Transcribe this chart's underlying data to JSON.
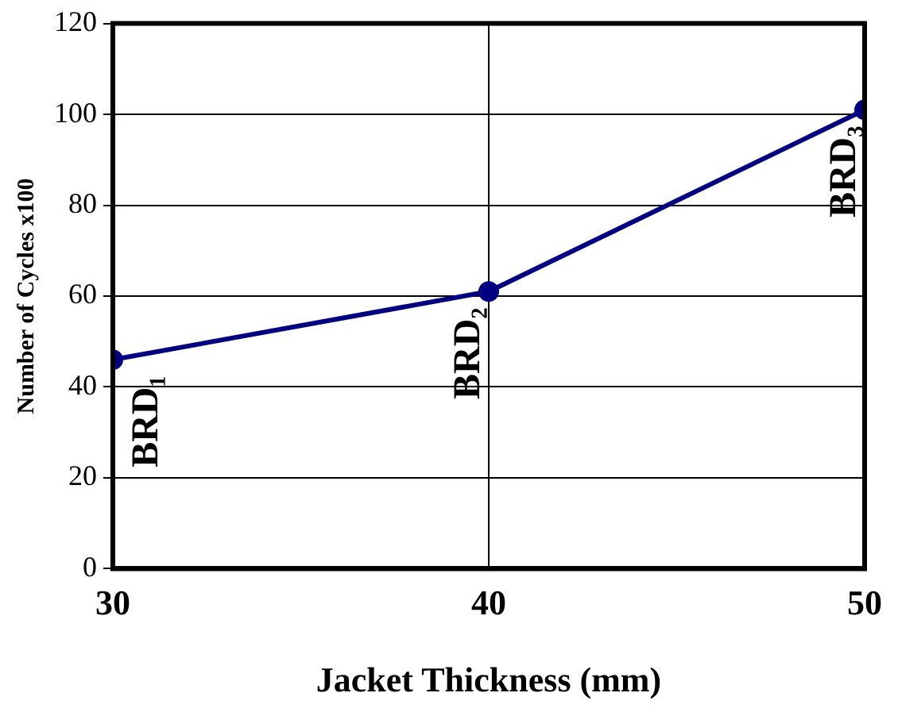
{
  "chart_data": {
    "type": "line",
    "xlabel": "Jacket Thickness (mm)",
    "ylabel": "Number of Cycles x100",
    "x": [
      30,
      40,
      50
    ],
    "series": [
      {
        "color": "#000080",
        "values": [
          46,
          61,
          101
        ]
      }
    ],
    "xlim": [
      30,
      50
    ],
    "xticks": [
      30,
      40,
      50
    ],
    "ylim": [
      0,
      120
    ],
    "yticks": [
      0,
      20,
      40,
      60,
      80,
      100,
      120
    ],
    "grid": true,
    "marker": "circle",
    "line_style": "solid",
    "annotations": [
      {
        "text": "BRD₁",
        "x": 30,
        "y": 46
      },
      {
        "text": "BRD₂",
        "x": 40,
        "y": 61
      },
      {
        "text": "BRD₃",
        "x": 50,
        "y": 101
      }
    ]
  }
}
